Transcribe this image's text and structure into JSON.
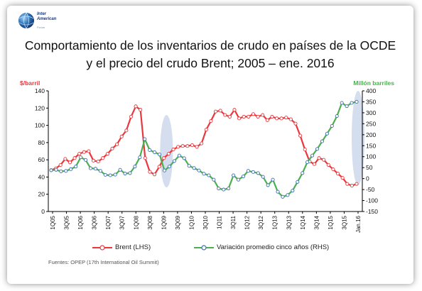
{
  "logo": {
    "line1": "Inter",
    "line2": "American",
    "line3": "Forum"
  },
  "title": "Comportamiento de los inventarios de crudo en países de la OCDE y el precio del crudo Brent; 2005 – ene. 2016",
  "source": "Fuentes: OPEP (17th International Oil Summit)",
  "colors": {
    "brent": "#e8373d",
    "variation": "#4caf50",
    "marker_fill": "#ffffff",
    "highlight": "#c5d3e8",
    "axis": "#000000"
  },
  "chart_data": {
    "type": "line",
    "title": "Comportamiento de los inventarios de crudo en países de la OCDE y el precio del crudo Brent; 2005 – ene. 2016",
    "left_axis": {
      "label": "$/barril",
      "ylim": [
        0,
        140
      ],
      "ticks": [
        0,
        20,
        40,
        60,
        80,
        100,
        120,
        140
      ]
    },
    "right_axis": {
      "label": "Millón barriles",
      "ylim": [
        -150,
        400
      ],
      "ticks": [
        -150,
        -100,
        -50,
        0,
        50,
        100,
        150,
        200,
        250,
        300,
        350,
        400
      ]
    },
    "x_tick_labels": [
      "1Q05",
      "3Q05",
      "1Q06",
      "3Q06",
      "1Q07",
      "3Q07",
      "1Q08",
      "3Q08",
      "1Q09",
      "3Q09",
      "1Q10",
      "3Q10",
      "1Q11",
      "3Q11",
      "1Q12",
      "3Q12",
      "1Q13",
      "3Q13",
      "1Q14",
      "3Q14",
      "1Q15",
      "3Q15",
      "Jan.16"
    ],
    "grid": false,
    "legend_position": "bottom",
    "series": [
      {
        "name": "Brent (LHS)",
        "axis": "left",
        "values": [
          48,
          50,
          54,
          61,
          57,
          62,
          67,
          69,
          70,
          59,
          58,
          62,
          67,
          73,
          78,
          87,
          94,
          110,
          122,
          118,
          62,
          46,
          43,
          52,
          62,
          67,
          72,
          75,
          76,
          76,
          77,
          75,
          79,
          95,
          105,
          116,
          117,
          112,
          110,
          118,
          108,
          110,
          110,
          113,
          110,
          112,
          106,
          110,
          108,
          108,
          109,
          107,
          102,
          88,
          72,
          58,
          55,
          62,
          60,
          54,
          49,
          44,
          39,
          32,
          30,
          32
        ]
      },
      {
        "name": "Variación promedio cinco años (RHS)",
        "axis": "right",
        "values": [
          38,
          40,
          33,
          35,
          43,
          55,
          97,
          85,
          47,
          45,
          35,
          17,
          15,
          18,
          40,
          23,
          25,
          55,
          97,
          180,
          130,
          120,
          110,
          37,
          55,
          80,
          105,
          93,
          58,
          48,
          37,
          22,
          15,
          -5,
          -45,
          -50,
          -45,
          15,
          -5,
          10,
          35,
          30,
          25,
          8,
          -30,
          -5,
          -60,
          -83,
          -75,
          -55,
          -15,
          25,
          75,
          105,
          135,
          170,
          205,
          240,
          285,
          345,
          330,
          345,
          350
        ]
      }
    ],
    "highlights": [
      {
        "around": "1Q09",
        "right_axis_range": [
          -40,
          290
        ]
      },
      {
        "around": "Jan.16",
        "right_axis_range": [
          -30,
          400
        ]
      }
    ]
  }
}
